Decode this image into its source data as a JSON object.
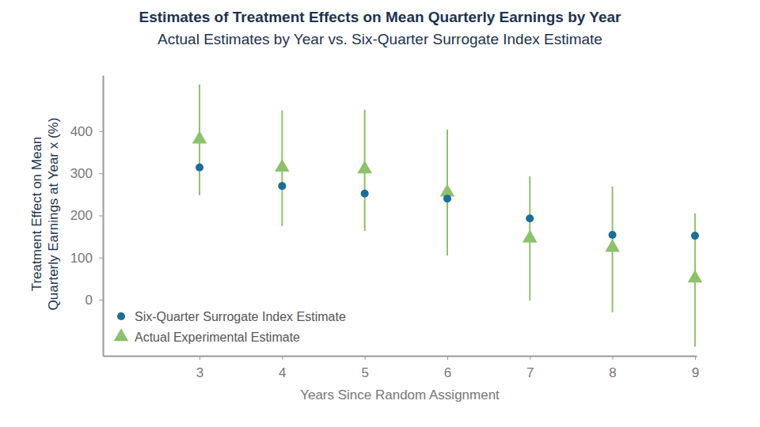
{
  "chart_data": {
    "type": "scatter",
    "title": "Estimates of Treatment Effects on Mean Quarterly Earnings by Year",
    "subtitle": "Actual Estimates by Year vs. Six-Quarter Surrogate Index Estimate",
    "xlabel": "Years Since Random Assignment",
    "ylabel": [
      "Treatment Effect on Mean",
      "Quarterly Earnings at Year x (%)"
    ],
    "x": [
      3,
      4,
      5,
      6,
      7,
      8,
      9
    ],
    "xlim": [
      1.83,
      9.02
    ],
    "xticks": [
      3,
      4,
      5,
      6,
      7,
      8,
      9
    ],
    "ylim": [
      -133,
      533
    ],
    "yticks": [
      0,
      100,
      200,
      300,
      400
    ],
    "grid": false,
    "legend": "lower left",
    "series": [
      {
        "name": "Six-Quarter Surrogate Index Estimate",
        "color": "#1a6e98",
        "marker": "circle",
        "values": [
          314,
          270,
          252,
          240,
          193,
          154,
          152
        ]
      },
      {
        "name": "Actual Experimental Estimate",
        "color": "#8cc26b",
        "marker": "triangle",
        "values": [
          381,
          314,
          310,
          255,
          146,
          124,
          51
        ],
        "ci_low": [
          248,
          175,
          163,
          105,
          -2,
          -30,
          -111
        ],
        "ci_high": [
          511,
          449,
          451,
          404,
          293,
          269,
          205
        ]
      }
    ]
  }
}
